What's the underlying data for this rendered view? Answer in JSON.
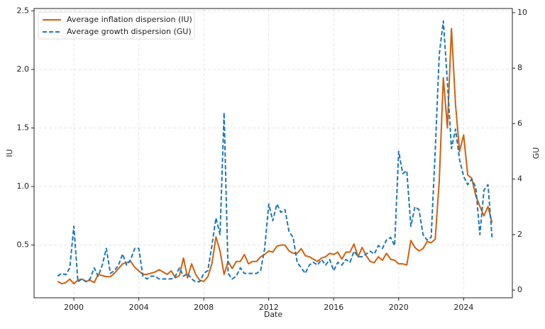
{
  "chart_data": {
    "type": "line",
    "xlabel": "Date",
    "ylabel": "IU",
    "y2label": "GU",
    "x": [
      1999,
      1999.25,
      1999.5,
      1999.75,
      2000,
      2000.25,
      2000.5,
      2000.75,
      2001,
      2001.25,
      2001.5,
      2001.75,
      2002,
      2002.25,
      2002.5,
      2002.75,
      2003,
      2003.25,
      2003.5,
      2003.75,
      2004,
      2004.25,
      2004.5,
      2004.75,
      2005,
      2005.25,
      2005.5,
      2005.75,
      2006,
      2006.25,
      2006.5,
      2006.75,
      2007,
      2007.25,
      2007.5,
      2007.75,
      2008,
      2008.25,
      2008.5,
      2008.75,
      2009,
      2009.25,
      2009.5,
      2009.75,
      2010,
      2010.25,
      2010.5,
      2010.75,
      2011,
      2011.25,
      2011.5,
      2011.75,
      2012,
      2012.25,
      2012.5,
      2012.75,
      2013,
      2013.25,
      2013.5,
      2013.75,
      2014,
      2014.25,
      2014.5,
      2014.75,
      2015,
      2015.25,
      2015.5,
      2015.75,
      2016,
      2016.25,
      2016.5,
      2016.75,
      2017,
      2017.25,
      2017.5,
      2017.75,
      2018,
      2018.25,
      2018.5,
      2018.75,
      2019,
      2019.25,
      2019.5,
      2019.75,
      2020,
      2020.25,
      2020.5,
      2020.75,
      2021,
      2021.25,
      2021.5,
      2021.75,
      2022,
      2022.25,
      2022.5,
      2022.75,
      2023,
      2023.25,
      2023.5,
      2023.75,
      2024,
      2024.25,
      2024.5,
      2024.75,
      2025,
      2025.25,
      2025.5,
      2025.75
    ],
    "series": [
      {
        "name": "Average inflation dispersion (IU)",
        "color": "#d0600e",
        "dash": false,
        "values": [
          0.19,
          0.17,
          0.18,
          0.21,
          0.17,
          0.2,
          0.21,
          0.19,
          0.2,
          0.18,
          0.25,
          0.24,
          0.23,
          0.23,
          0.26,
          0.3,
          0.34,
          0.35,
          0.36,
          0.31,
          0.28,
          0.25,
          0.25,
          0.26,
          0.27,
          0.29,
          0.27,
          0.25,
          0.28,
          0.22,
          0.24,
          0.39,
          0.22,
          0.34,
          0.25,
          0.2,
          0.19,
          0.23,
          0.34,
          0.57,
          0.45,
          0.25,
          0.36,
          0.3,
          0.36,
          0.36,
          0.42,
          0.34,
          0.36,
          0.36,
          0.4,
          0.42,
          0.45,
          0.44,
          0.49,
          0.5,
          0.5,
          0.45,
          0.43,
          0.43,
          0.47,
          0.41,
          0.4,
          0.38,
          0.36,
          0.39,
          0.4,
          0.43,
          0.42,
          0.44,
          0.38,
          0.44,
          0.44,
          0.51,
          0.4,
          0.48,
          0.41,
          0.36,
          0.35,
          0.4,
          0.37,
          0.43,
          0.38,
          0.37,
          0.34,
          0.34,
          0.33,
          0.54,
          0.48,
          0.45,
          0.47,
          0.53,
          0.52,
          0.55,
          1.05,
          1.93,
          1.5,
          2.35,
          1.7,
          1.3,
          1.44,
          1.1,
          1.07,
          0.92,
          0.83,
          0.75,
          0.83,
          0.69
        ]
      },
      {
        "name": "Average growth dispersion (GU)",
        "color": "#1f77b4",
        "dash": true,
        "axis": "y2",
        "values": [
          0.5,
          0.6,
          0.55,
          0.8,
          2.3,
          0.3,
          0.4,
          0.3,
          0.4,
          0.8,
          0.5,
          0.9,
          1.5,
          0.6,
          0.7,
          0.9,
          1.3,
          0.9,
          1.1,
          1.5,
          1.5,
          0.5,
          0.4,
          0.5,
          0.5,
          0.4,
          0.4,
          0.4,
          0.4,
          0.5,
          0.8,
          0.5,
          0.6,
          0.4,
          0.3,
          0.3,
          0.6,
          0.7,
          1.6,
          2.6,
          2.0,
          6.4,
          0.6,
          0.4,
          0.5,
          0.8,
          0.6,
          0.6,
          0.6,
          0.6,
          0.7,
          1.5,
          3.1,
          2.5,
          3.1,
          2.8,
          2.9,
          2.1,
          1.9,
          1.0,
          0.8,
          0.6,
          0.9,
          1.0,
          0.9,
          1.1,
          0.9,
          1.1,
          0.7,
          1.0,
          0.9,
          1.1,
          1.0,
          1.4,
          1.2,
          1.2,
          1.3,
          1.4,
          1.3,
          1.6,
          1.5,
          1.8,
          1.9,
          1.6,
          5.0,
          4.2,
          4.3,
          2.3,
          3.0,
          2.9,
          2.0,
          1.8,
          1.9,
          5.0,
          8.5,
          9.7,
          7.5,
          5.1,
          5.8,
          4.7,
          4.1,
          3.8,
          4.0,
          3.7,
          2.0,
          3.6,
          3.8,
          1.9
        ]
      }
    ],
    "xlim": [
      1997.55,
      2027.0
    ],
    "xticks": [
      2000,
      2004,
      2008,
      2012,
      2016,
      2020,
      2024
    ],
    "ylim": [
      0.05,
      2.52
    ],
    "yticks": [
      0.5,
      {
        "value": 1,
        "label": "1.0"
      },
      1.5,
      {
        "value": 2,
        "label": "2.0"
      },
      2.5
    ],
    "y2lim": [
      -0.28,
      10.15
    ],
    "y2ticks": [
      0,
      2,
      4,
      6,
      8,
      10
    ],
    "grid": true,
    "legend": "upper-left"
  }
}
